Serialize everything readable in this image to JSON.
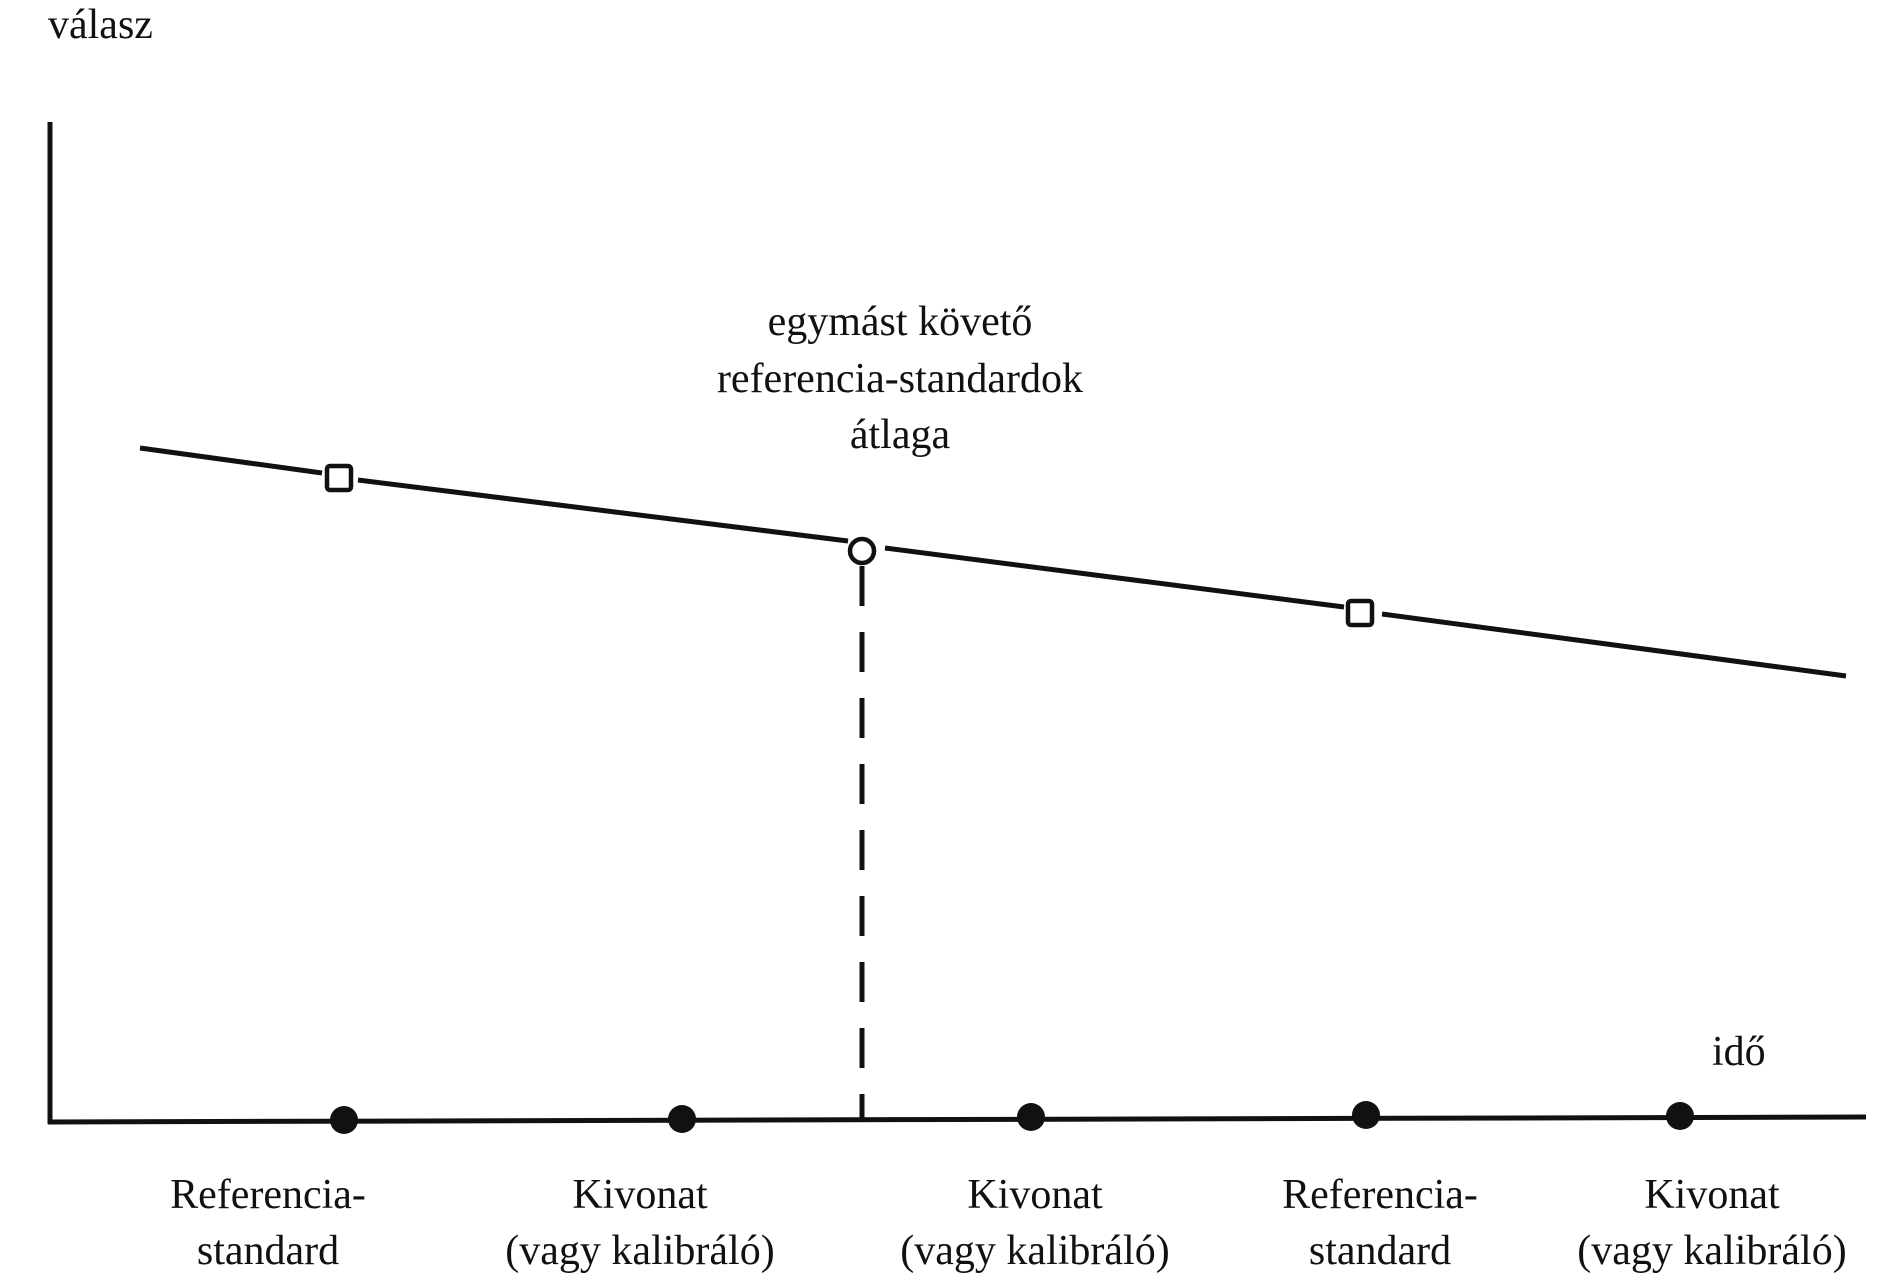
{
  "axes": {
    "y_label": "válasz",
    "x_label": "idő"
  },
  "annotation": {
    "lines": [
      "egymást követő",
      "referencia-standardok",
      "átlaga"
    ]
  },
  "timeline": [
    {
      "line1": "Referencia-",
      "line2": "standard"
    },
    {
      "line1": "Kivonat",
      "line2": "(vagy kalibráló)"
    },
    {
      "line1": "Kivonat",
      "line2": "(vagy kalibráló)"
    },
    {
      "line1": "Referencia-",
      "line2": "standard"
    },
    {
      "line1": "Kivonat",
      "line2": "(vagy kalibráló)"
    }
  ],
  "colors": {
    "ink": "#111111",
    "background": "#ffffff"
  }
}
